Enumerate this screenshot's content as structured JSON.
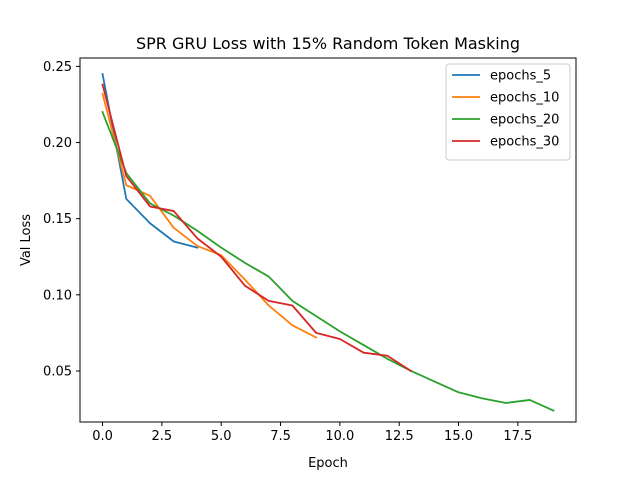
{
  "chart_data": {
    "type": "line",
    "title": "SPR GRU Loss with 15% Random Token Masking",
    "xlabel": "Epoch",
    "ylabel": "Val Loss",
    "xlim": [
      -0.95,
      19.95
    ],
    "ylim": [
      0.0165,
      0.2555
    ],
    "x_ticks": [
      0.0,
      2.5,
      5.0,
      7.5,
      10.0,
      12.5,
      15.0,
      17.5
    ],
    "x_tick_labels": [
      "0.0",
      "2.5",
      "5.0",
      "7.5",
      "10.0",
      "12.5",
      "15.0",
      "17.5"
    ],
    "y_ticks": [
      0.05,
      0.1,
      0.15,
      0.2,
      0.25
    ],
    "y_tick_labels": [
      "0.05",
      "0.10",
      "0.15",
      "0.20",
      "0.25"
    ],
    "grid": false,
    "legend_position": "top-right",
    "series": [
      {
        "name": "epochs_5",
        "color": "#1f77b4",
        "x": [
          0,
          1,
          2,
          3,
          4
        ],
        "y": [
          0.245,
          0.163,
          0.147,
          0.135,
          0.131
        ]
      },
      {
        "name": "epochs_10",
        "color": "#ff7f0e",
        "x": [
          0,
          1,
          2,
          3,
          4,
          5,
          6,
          7,
          8,
          9
        ],
        "y": [
          0.232,
          0.172,
          0.165,
          0.144,
          0.132,
          0.126,
          0.11,
          0.093,
          0.08,
          0.072
        ]
      },
      {
        "name": "epochs_20",
        "color": "#2ca02c",
        "x": [
          0,
          1,
          2,
          3,
          4,
          5,
          6,
          7,
          8,
          9,
          10,
          11,
          12,
          13,
          14,
          15,
          16,
          17,
          18,
          19
        ],
        "y": [
          0.22,
          0.18,
          0.16,
          0.152,
          0.142,
          0.131,
          0.121,
          0.112,
          0.096,
          0.086,
          0.076,
          0.067,
          0.058,
          0.05,
          0.043,
          0.036,
          0.032,
          0.029,
          0.031,
          0.024
        ]
      },
      {
        "name": "epochs_30",
        "color": "#d62728",
        "x": [
          0,
          1,
          2,
          3,
          4,
          5,
          6,
          7,
          8,
          9,
          10,
          11,
          12,
          13
        ],
        "y": [
          0.238,
          0.178,
          0.158,
          0.155,
          0.137,
          0.125,
          0.106,
          0.096,
          0.093,
          0.075,
          0.071,
          0.062,
          0.06,
          0.05
        ]
      }
    ]
  }
}
